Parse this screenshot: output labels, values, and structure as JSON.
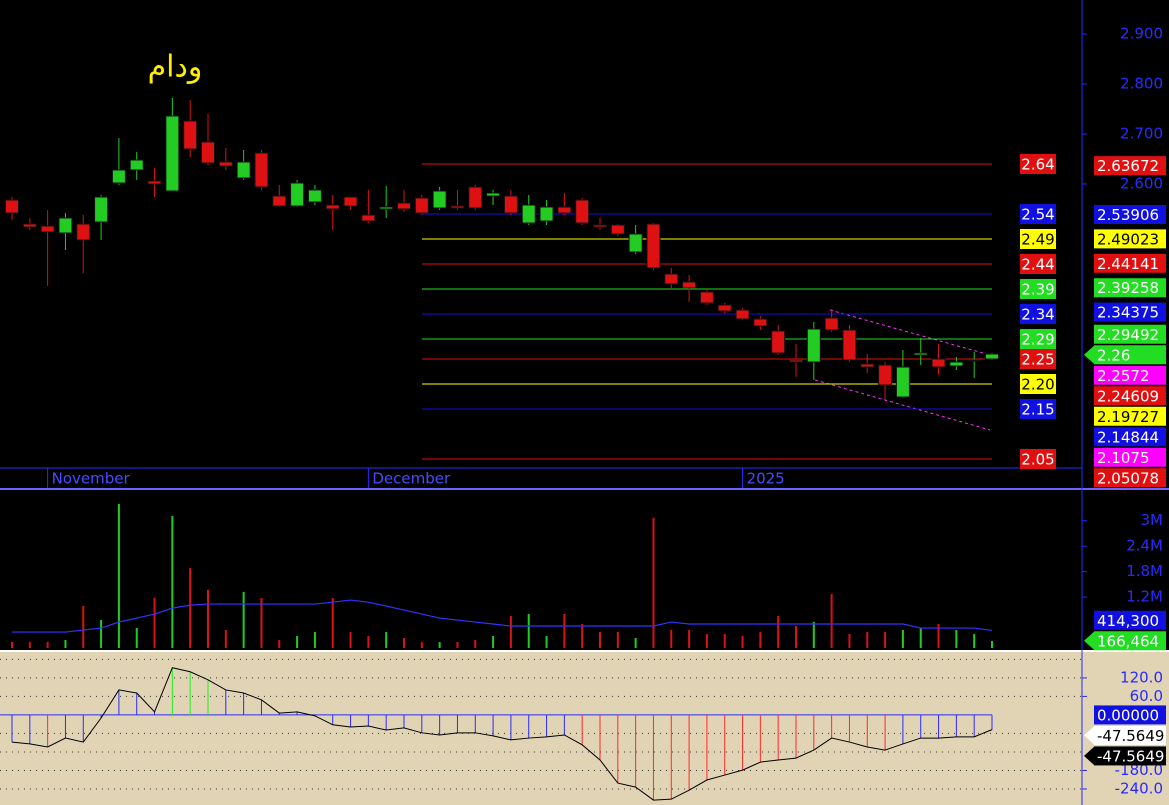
{
  "chart_data": [
    {
      "type": "candlestick",
      "title": "ودام",
      "categories": [
        null,
        null,
        "November",
        null,
        null,
        null,
        null,
        null,
        null,
        null,
        null,
        null,
        null,
        null,
        null,
        null,
        null,
        null,
        null,
        null,
        "December",
        null,
        null,
        null,
        null,
        null,
        null,
        null,
        null,
        null,
        null,
        null,
        null,
        null,
        null,
        null,
        null,
        null,
        null,
        null,
        null,
        "2025",
        null,
        null,
        null,
        null,
        null,
        null,
        null,
        null,
        null,
        null,
        null,
        null,
        null,
        null
      ],
      "open": [
        2.568,
        2.52,
        2.516,
        2.502,
        2.52,
        2.524,
        2.602,
        2.628,
        2.606,
        2.586,
        2.726,
        2.684,
        2.644,
        2.612,
        2.662,
        2.576,
        2.556,
        2.564,
        2.558,
        2.574,
        2.538,
        2.55,
        2.562,
        2.572,
        2.552,
        2.556,
        2.594,
        2.576,
        2.576,
        2.522,
        2.526,
        2.554,
        2.568,
        2.518,
        2.518,
        2.464,
        2.52,
        2.42,
        2.404,
        2.384,
        2.358,
        2.348,
        2.33,
        2.306,
        2.248,
        2.244,
        2.332,
        2.308,
        2.24,
        2.238,
        2.174,
        2.258,
        2.25,
        2.236,
        2.246,
        2.25
      ],
      "high": [
        2.574,
        2.532,
        2.548,
        2.542,
        2.538,
        2.578,
        2.692,
        2.664,
        2.632,
        2.772,
        2.768,
        2.74,
        2.672,
        2.668,
        2.668,
        2.598,
        2.608,
        2.598,
        2.578,
        2.574,
        2.588,
        2.596,
        2.588,
        2.578,
        2.594,
        2.588,
        2.598,
        2.588,
        2.588,
        2.578,
        2.568,
        2.582,
        2.572,
        2.532,
        2.52,
        2.518,
        2.522,
        2.432,
        2.418,
        2.388,
        2.362,
        2.352,
        2.336,
        2.318,
        2.28,
        2.324,
        2.35,
        2.318,
        2.26,
        2.244,
        2.268,
        2.292,
        2.28,
        2.254,
        2.264,
        2.262
      ],
      "low": [
        2.528,
        2.508,
        2.396,
        2.468,
        2.422,
        2.488,
        2.598,
        2.608,
        2.574,
        2.586,
        2.654,
        2.638,
        2.628,
        2.608,
        2.588,
        2.554,
        2.554,
        2.558,
        2.508,
        2.548,
        2.522,
        2.532,
        2.544,
        2.538,
        2.548,
        2.548,
        2.548,
        2.558,
        2.538,
        2.518,
        2.518,
        2.538,
        2.518,
        2.508,
        2.496,
        2.46,
        2.428,
        2.388,
        2.364,
        2.358,
        2.342,
        2.328,
        2.308,
        2.258,
        2.214,
        2.208,
        2.304,
        2.244,
        2.222,
        2.168,
        2.172,
        2.238,
        2.218,
        2.228,
        2.212,
        2.248
      ],
      "close": [
        2.542,
        2.514,
        2.504,
        2.532,
        2.488,
        2.574,
        2.628,
        2.648,
        2.6,
        2.736,
        2.67,
        2.642,
        2.636,
        2.644,
        2.594,
        2.556,
        2.602,
        2.588,
        2.55,
        2.556,
        2.526,
        2.554,
        2.55,
        2.542,
        2.586,
        2.552,
        2.552,
        2.582,
        2.542,
        2.558,
        2.554,
        2.542,
        2.522,
        2.514,
        2.5,
        2.5,
        2.432,
        2.4,
        2.392,
        2.362,
        2.346,
        2.33,
        2.316,
        2.262,
        2.244,
        2.31,
        2.308,
        2.248,
        2.234,
        2.198,
        2.234,
        2.262,
        2.234,
        2.244,
        2.248,
        2.26
      ],
      "up_color": "#22cc22",
      "down_color": "#dd1111",
      "ylim": [
        2.032,
        2.968
      ],
      "yticks": [
        {
          "value": 2.9,
          "label": "2.900"
        },
        {
          "value": 2.8,
          "label": "2.800"
        },
        {
          "value": 2.7,
          "label": "2.700"
        },
        {
          "value": 2.6,
          "label": "2.600"
        }
      ],
      "levels": [
        {
          "value": 2.64,
          "color": "#e01010"
        },
        {
          "value": 2.54,
          "color": "#1010e0"
        },
        {
          "value": 2.49,
          "color": "#ffff00"
        },
        {
          "value": 2.44,
          "color": "#e01010"
        },
        {
          "value": 2.39,
          "color": "#22dd22"
        },
        {
          "value": 2.34,
          "color": "#1010e0"
        },
        {
          "value": 2.29,
          "color": "#22dd22"
        },
        {
          "value": 2.25,
          "color": "#e01010"
        },
        {
          "value": 2.2,
          "label": "2.20",
          "color": "#ffff00"
        },
        {
          "value": 2.15,
          "color": "#1010e0"
        },
        {
          "value": 2.05,
          "color": "#e01010"
        }
      ],
      "markers": [
        {
          "value": 2.63672,
          "color": "#e01010"
        },
        {
          "value": 2.53906,
          "color": "#1010e0"
        },
        {
          "value": 2.49023,
          "color": "#ffff00"
        },
        {
          "value": 2.44141,
          "color": "#e01010"
        },
        {
          "value": 2.39258,
          "color": "#22dd22"
        },
        {
          "value": 2.34375,
          "color": "#1010e0"
        },
        {
          "value": 2.29492,
          "color": "#22dd22"
        },
        {
          "value": 2.26,
          "color": "#22dd22"
        },
        {
          "value": 2.2572,
          "color": "#ff00ff"
        },
        {
          "value": 2.24609,
          "color": "#e01010"
        },
        {
          "value": 2.19727,
          "color": "#ffff00"
        },
        {
          "value": 2.14844,
          "color": "#1010e0"
        },
        {
          "value": 2.1075,
          "color": "#ff00ff"
        },
        {
          "value": 2.05078,
          "color": "#e01010"
        }
      ]
    },
    {
      "type": "bar",
      "values": [
        142000,
        142000,
        142000,
        189000,
        991000,
        661000,
        3398000,
        472000,
        1180000,
        3115000,
        1888000,
        1369000,
        425000,
        1322000,
        1180000,
        189000,
        283000,
        378000,
        1180000,
        378000,
        283000,
        378000,
        236000,
        142000,
        142000,
        142000,
        189000,
        283000,
        755000,
        802000,
        283000,
        802000,
        566000,
        378000,
        378000,
        236000,
        3068000,
        425000,
        425000,
        330000,
        330000,
        283000,
        378000,
        755000,
        519000,
        614000,
        1274000,
        330000,
        378000,
        378000,
        425000,
        472000,
        566000,
        425000,
        330000,
        166464
      ],
      "ma": {
        "color": "#3333ff",
        "values": [
          376000,
          376000,
          376000,
          376000,
          423000,
          470000,
          611000,
          705000,
          800000,
          940000,
          1010000,
          1035000,
          1035000,
          1035000,
          1035000,
          1035000,
          1035000,
          1035000,
          1080000,
          1130000,
          1080000,
          988000,
          894000,
          800000,
          705000,
          659000,
          611000,
          565000,
          518000,
          518000,
          518000,
          518000,
          518000,
          518000,
          518000,
          518000,
          518000,
          611000,
          565000,
          565000,
          565000,
          565000,
          565000,
          565000,
          565000,
          565000,
          565000,
          565000,
          565000,
          565000,
          565000,
          470000,
          470000,
          470000,
          470000,
          414300
        ]
      },
      "ylim": [
        0,
        3700000
      ],
      "yticks": [
        {
          "value": 3000000,
          "label": "3M"
        },
        {
          "value": 2400000,
          "label": "2.4M"
        },
        {
          "value": 1800000,
          "label": "1.8M"
        },
        {
          "value": 1200000,
          "label": "1.2M"
        }
      ],
      "markers": [
        {
          "value": 414300,
          "label": "414,300",
          "color": "#1010e0"
        },
        {
          "value": 166464,
          "label": "166,464",
          "color": "#22dd22"
        }
      ]
    },
    {
      "type": "oscillator",
      "values": [
        -88,
        -94,
        -104,
        -75,
        -88,
        -10,
        81,
        71,
        10,
        153,
        140,
        114,
        81,
        71,
        49,
        6,
        10,
        -3,
        -32,
        -39,
        -36,
        -49,
        -42,
        -58,
        -65,
        -58,
        -58,
        -68,
        -81,
        -75,
        -71,
        -65,
        -97,
        -146,
        -221,
        -234,
        -276,
        -273,
        -244,
        -211,
        -195,
        -179,
        -153,
        -146,
        -140,
        -114,
        -75,
        -88,
        -104,
        -114,
        -94,
        -75,
        -75,
        -71,
        -71,
        -47.5649
      ],
      "colors": [
        "#2a2aff",
        "#2a2aff",
        "#ff2a2a",
        "#2a2aff",
        "#2a2aff",
        "#2a2aff",
        "#2a2aff",
        "#2a2aff",
        "#2a2aff",
        "#22ee22",
        "#22ee22",
        "#22ee22",
        "#2a2aff",
        "#2a2aff",
        "#2a2aff",
        "#2a2aff",
        "#2a2aff",
        "#2a2aff",
        "#2a2aff",
        "#2a2aff",
        "#2a2aff",
        "#2a2aff",
        "#2a2aff",
        "#2a2aff",
        "#2a2aff",
        "#2a2aff",
        "#2a2aff",
        "#2a2aff",
        "#2a2aff",
        "#2a2aff",
        "#2a2aff",
        "#2a2aff",
        "#ff2a2a",
        "#ff2a2a",
        "#ff2a2a",
        "#ff2a2a",
        "#ff2a2a",
        "#ff2a2a",
        "#ff2a2a",
        "#ff2a2a",
        "#ff2a2a",
        "#ff2a2a",
        "#ff2a2a",
        "#ff2a2a",
        "#ff2a2a",
        "#ff2a2a",
        "#ff2a2a",
        "#ff2a2a",
        "#ff2a2a",
        "#ff2a2a",
        "#2a2aff",
        "#2a2aff",
        "#2a2aff",
        "#2a2aff",
        "#2a2aff",
        "#2a2aff"
      ],
      "ylim": [
        -292,
        204
      ],
      "yticks": [
        {
          "value": 120,
          "label": "120.0"
        },
        {
          "value": 60,
          "label": "60.0"
        },
        {
          "value": -180,
          "label": "-180.0"
        },
        {
          "value": -240,
          "label": "-240.0"
        }
      ],
      "grid": [
        180,
        120,
        60,
        -60,
        -120,
        -180,
        -240
      ],
      "markers": [
        {
          "value": 0,
          "label": "0.00000",
          "color": "#1010e0"
        },
        {
          "value": -47.5649,
          "color": "#ffffff"
        },
        {
          "value": -47.5649,
          "color": "#000000"
        }
      ]
    }
  ]
}
